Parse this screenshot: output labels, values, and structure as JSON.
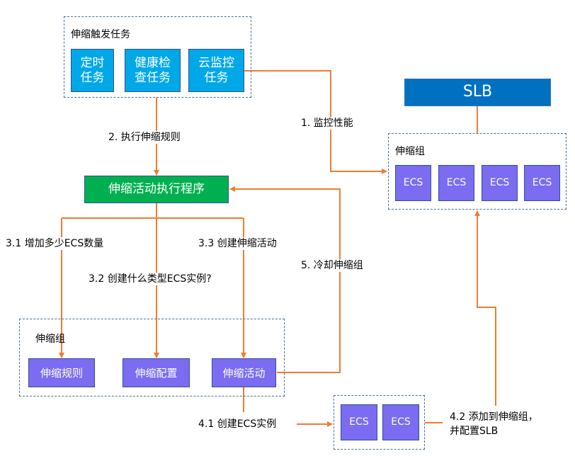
{
  "colors": {
    "connector": "#ed7d31",
    "task_box": "#00a8e8",
    "ecs_box": "#7b6cf2",
    "slb_box": "#0070c0",
    "executor_box": "#00b050",
    "group_border": "#41719c"
  },
  "trigger_group": {
    "title": "伸缩触发任务",
    "tasks": [
      {
        "line1": "定时",
        "line2": "任务"
      },
      {
        "line1": "健康检",
        "line2": "查任务"
      },
      {
        "line1": "云监控",
        "line2": "任务"
      }
    ]
  },
  "slb": {
    "label": "SLB"
  },
  "right_group": {
    "title": "伸缩组",
    "instances": [
      "ECS",
      "ECS",
      "ECS",
      "ECS"
    ]
  },
  "executor": {
    "label": "伸缩活动执行程序"
  },
  "bottom_group": {
    "title": "伸缩组",
    "items": [
      "伸缩规则",
      "伸缩配置",
      "伸缩活动"
    ]
  },
  "new_instances": [
    "ECS",
    "ECS"
  ],
  "steps": {
    "s1": "1. 监控性能",
    "s2": "2. 执行伸缩规则",
    "s31": "3.1 增加多少ECS数量",
    "s32": "3.2 创建什么类型ECS实例?",
    "s33": "3.3 创建伸缩活动",
    "s41": "4.1 创建ECS实例",
    "s42_line1": "4.2 添加到伸缩组，",
    "s42_line2": "并配置SLB",
    "s5": "5. 冷却伸缩组"
  },
  "arrows": [
    "cloud-monitor-task to scaling-group (1)",
    "trigger-group to executor (2)",
    "executor to scaling-rule (3.1)",
    "executor to scaling-config (3.2)",
    "executor to scaling-activity (3.3)",
    "scaling-activity to new-ecs (4.1)",
    "new-ecs to scaling-group (4.2)",
    "scaling-activity to executor (5)"
  ]
}
